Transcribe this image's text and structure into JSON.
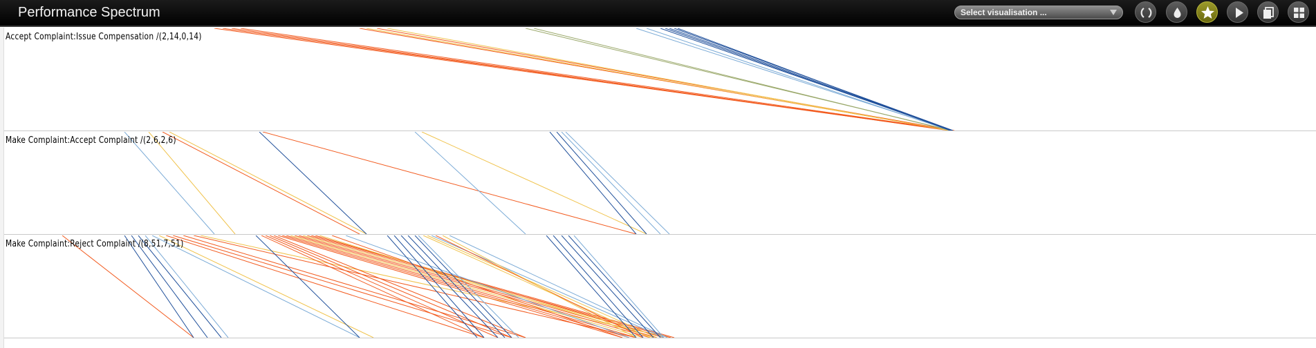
{
  "header": {
    "title": "Performance Spectrum",
    "select_placeholder": "Select visualisation ...",
    "buttons": [
      {
        "name": "reset-button",
        "icon": "circular-arrows-icon",
        "active": false
      },
      {
        "name": "colour-button",
        "icon": "droplet-icon",
        "active": false
      },
      {
        "name": "favourite-button",
        "icon": "star-icon",
        "active": true
      },
      {
        "name": "play-button",
        "icon": "play-icon",
        "active": false
      },
      {
        "name": "copy-button",
        "icon": "copy-icon",
        "active": false
      },
      {
        "name": "grid-view-button",
        "icon": "grid-icon",
        "active": false
      }
    ]
  },
  "colors": {
    "blue_dark": "#1f4f9a",
    "blue_light": "#7aaad6",
    "orange": "#f25a1e",
    "yellow": "#f0c24a",
    "olive": "#9aa86a"
  },
  "segments": [
    {
      "label": "Accept Complaint:Issue Compensation /(2,14,0,14)",
      "lines": [
        {
          "s": 310,
          "e": 1375,
          "c": "orange"
        },
        {
          "s": 322,
          "e": 1378,
          "c": "orange"
        },
        {
          "s": 335,
          "e": 1372,
          "c": "orange"
        },
        {
          "s": 348,
          "e": 1380,
          "c": "orange"
        },
        {
          "s": 520,
          "e": 1376,
          "c": "orange"
        },
        {
          "s": 530,
          "e": 1374,
          "c": "yellow"
        },
        {
          "s": 545,
          "e": 1378,
          "c": "orange"
        },
        {
          "s": 560,
          "e": 1372,
          "c": "yellow"
        },
        {
          "s": 760,
          "e": 1376,
          "c": "olive"
        },
        {
          "s": 772,
          "e": 1374,
          "c": "olive"
        },
        {
          "s": 920,
          "e": 1376,
          "c": "blue_light"
        },
        {
          "s": 935,
          "e": 1374,
          "c": "blue_light"
        },
        {
          "s": 955,
          "e": 1377,
          "c": "blue_dark"
        },
        {
          "s": 962,
          "e": 1375,
          "c": "blue_dark"
        },
        {
          "s": 968,
          "e": 1376,
          "c": "blue_dark"
        },
        {
          "s": 975,
          "e": 1378,
          "c": "blue_dark"
        },
        {
          "s": 980,
          "e": 1374,
          "c": "blue_dark"
        }
      ]
    },
    {
      "label": "Make Complaint:Accept Complaint /(2,6,2,6)",
      "lines": [
        {
          "s": 180,
          "e": 310,
          "c": "blue_light"
        },
        {
          "s": 215,
          "e": 340,
          "c": "yellow"
        },
        {
          "s": 235,
          "e": 520,
          "c": "orange"
        },
        {
          "s": 245,
          "e": 530,
          "c": "yellow"
        },
        {
          "s": 375,
          "e": 530,
          "c": "blue_dark"
        },
        {
          "s": 380,
          "e": 920,
          "c": "orange"
        },
        {
          "s": 600,
          "e": 760,
          "c": "blue_light"
        },
        {
          "s": 610,
          "e": 935,
          "c": "yellow"
        },
        {
          "s": 795,
          "e": 920,
          "c": "blue_dark"
        },
        {
          "s": 805,
          "e": 935,
          "c": "blue_dark"
        },
        {
          "s": 812,
          "e": 955,
          "c": "blue_light"
        },
        {
          "s": 818,
          "e": 968,
          "c": "blue_light"
        }
      ]
    },
    {
      "label": "Make Complaint:Reject Complaint /(8,51,7,51)",
      "lines": [
        {
          "s": 90,
          "e": 280,
          "c": "orange"
        },
        {
          "s": 180,
          "e": 280,
          "c": "blue_dark"
        },
        {
          "s": 190,
          "e": 300,
          "c": "blue_dark"
        },
        {
          "s": 200,
          "e": 320,
          "c": "blue_dark"
        },
        {
          "s": 210,
          "e": 330,
          "c": "blue_light"
        },
        {
          "s": 220,
          "e": 520,
          "c": "blue_light"
        },
        {
          "s": 230,
          "e": 540,
          "c": "yellow"
        },
        {
          "s": 240,
          "e": 700,
          "c": "orange"
        },
        {
          "s": 250,
          "e": 740,
          "c": "orange"
        },
        {
          "s": 265,
          "e": 760,
          "c": "orange"
        },
        {
          "s": 280,
          "e": 920,
          "c": "orange"
        },
        {
          "s": 290,
          "e": 970,
          "c": "yellow"
        },
        {
          "s": 370,
          "e": 520,
          "c": "blue_dark"
        },
        {
          "s": 378,
          "e": 700,
          "c": "orange"
        },
        {
          "s": 384,
          "e": 720,
          "c": "orange"
        },
        {
          "s": 390,
          "e": 740,
          "c": "orange"
        },
        {
          "s": 396,
          "e": 760,
          "c": "orange"
        },
        {
          "s": 402,
          "e": 900,
          "c": "orange"
        },
        {
          "s": 408,
          "e": 910,
          "c": "orange"
        },
        {
          "s": 414,
          "e": 920,
          "c": "orange"
        },
        {
          "s": 420,
          "e": 930,
          "c": "yellow"
        },
        {
          "s": 426,
          "e": 940,
          "c": "orange"
        },
        {
          "s": 432,
          "e": 950,
          "c": "orange"
        },
        {
          "s": 438,
          "e": 960,
          "c": "yellow"
        },
        {
          "s": 444,
          "e": 970,
          "c": "orange"
        },
        {
          "s": 450,
          "e": 975,
          "c": "orange"
        },
        {
          "s": 456,
          "e": 960,
          "c": "orange"
        },
        {
          "s": 462,
          "e": 945,
          "c": "yellow"
        },
        {
          "s": 480,
          "e": 900,
          "c": "orange"
        },
        {
          "s": 500,
          "e": 910,
          "c": "blue_light"
        },
        {
          "s": 560,
          "e": 690,
          "c": "blue_dark"
        },
        {
          "s": 570,
          "e": 700,
          "c": "blue_dark"
        },
        {
          "s": 580,
          "e": 720,
          "c": "blue_dark"
        },
        {
          "s": 590,
          "e": 730,
          "c": "blue_dark"
        },
        {
          "s": 600,
          "e": 740,
          "c": "blue_dark"
        },
        {
          "s": 605,
          "e": 750,
          "c": "blue_light"
        },
        {
          "s": 612,
          "e": 940,
          "c": "yellow"
        },
        {
          "s": 618,
          "e": 950,
          "c": "yellow"
        },
        {
          "s": 624,
          "e": 960,
          "c": "blue_light"
        },
        {
          "s": 630,
          "e": 930,
          "c": "orange"
        },
        {
          "s": 640,
          "e": 920,
          "c": "yellow"
        },
        {
          "s": 650,
          "e": 965,
          "c": "blue_light"
        },
        {
          "s": 790,
          "e": 920,
          "c": "blue_dark"
        },
        {
          "s": 800,
          "e": 930,
          "c": "blue_dark"
        },
        {
          "s": 812,
          "e": 945,
          "c": "blue_dark"
        },
        {
          "s": 822,
          "e": 955,
          "c": "blue_dark"
        },
        {
          "s": 830,
          "e": 960,
          "c": "blue_light"
        }
      ]
    }
  ]
}
